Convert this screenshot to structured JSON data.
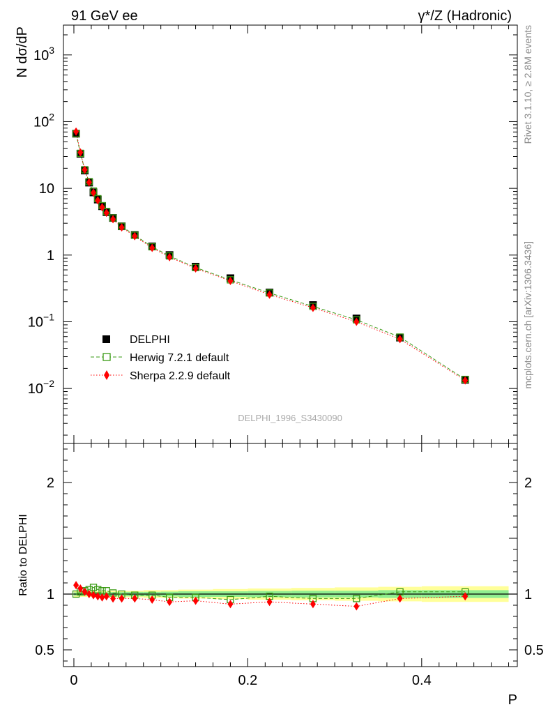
{
  "header": {
    "left_title": "91 GeV ee",
    "right_title": "γ*/Z (Hadronic)"
  },
  "side_labels": {
    "rivet": "Rivet 3.1.10, ≥ 2.8M events",
    "mcplots": "mcplots.cern.ch [arXiv:1306.3436]"
  },
  "watermark": "DELPHI_1996_S3430090",
  "colors": {
    "data": "#000000",
    "herwig": "#3a9a14",
    "sherpa": "#ff0000",
    "band_inner": "#90ee90",
    "band_outer": "#ffff99"
  },
  "chart_data": [
    {
      "type": "scatter",
      "title": "91 GeV ee",
      "xlabel": "P",
      "ylabel": "N dσ/dP",
      "xlim": [
        -0.012,
        0.51
      ],
      "ylim": [
        0.0015,
        2800
      ],
      "yscale": "log",
      "x_ticks": [
        "0",
        "0.2",
        "0.4"
      ],
      "y_tick_labels": [
        "10^-2",
        "10^-1",
        "1",
        "10",
        "10^2",
        "10^3"
      ],
      "legend": {
        "placement": "lower-left",
        "entries": [
          "DELPHI",
          "Herwig 7.2.1 default",
          "Sherpa 2.2.9 default"
        ]
      },
      "x": [
        0.0025,
        0.0075,
        0.0125,
        0.0175,
        0.0225,
        0.0275,
        0.0325,
        0.0375,
        0.045,
        0.055,
        0.07,
        0.09,
        0.11,
        0.14,
        0.18,
        0.225,
        0.275,
        0.325,
        0.375,
        0.45
      ],
      "series": [
        {
          "name": "DELPHI",
          "marker": "filled-square",
          "values": [
            66,
            33,
            18.5,
            12.2,
            8.7,
            6.8,
            5.4,
            4.4,
            3.6,
            2.7,
            2.0,
            1.35,
            1.0,
            0.67,
            0.45,
            0.275,
            0.178,
            0.112,
            0.058,
            0.0135
          ]
        },
        {
          "name": "Herwig 7.2.1 default",
          "marker": "open-square",
          "line": "dashed",
          "values": [
            66,
            33.5,
            19.0,
            12.6,
            9.1,
            7.0,
            5.5,
            4.5,
            3.6,
            2.7,
            1.98,
            1.33,
            0.97,
            0.65,
            0.425,
            0.27,
            0.17,
            0.107,
            0.059,
            0.0137
          ]
        },
        {
          "name": "Sherpa 2.2.9 default",
          "marker": "filled-diamond",
          "line": "dotted",
          "values": [
            71,
            34.5,
            19.0,
            12.3,
            8.6,
            6.6,
            5.2,
            4.3,
            3.45,
            2.6,
            1.92,
            1.28,
            0.93,
            0.63,
            0.41,
            0.255,
            0.162,
            0.1,
            0.055,
            0.0132
          ]
        }
      ]
    },
    {
      "type": "line",
      "xlabel": "P",
      "ylabel": "Ratio to DELPHI",
      "xlim": [
        -0.012,
        0.51
      ],
      "ylim": [
        0.35,
        2.35
      ],
      "y_ticks": [
        "0.5",
        "1",
        "2"
      ],
      "x_ticks": [
        "0",
        "0.2",
        "0.4"
      ],
      "band_edges": [
        0.0,
        0.005,
        0.01,
        0.015,
        0.02,
        0.025,
        0.03,
        0.035,
        0.04,
        0.05,
        0.06,
        0.08,
        0.1,
        0.12,
        0.16,
        0.2,
        0.25,
        0.3,
        0.35,
        0.4,
        0.5
      ],
      "band_inner_halfwidth": [
        0.015,
        0.015,
        0.015,
        0.015,
        0.015,
        0.016,
        0.016,
        0.017,
        0.018,
        0.018,
        0.02,
        0.02,
        0.022,
        0.025,
        0.025,
        0.028,
        0.03,
        0.03,
        0.035,
        0.035
      ],
      "band_outer_halfwidth": [
        0.025,
        0.025,
        0.025,
        0.025,
        0.026,
        0.026,
        0.028,
        0.028,
        0.03,
        0.03,
        0.03,
        0.035,
        0.035,
        0.04,
        0.045,
        0.05,
        0.055,
        0.06,
        0.065,
        0.07
      ],
      "series": [
        {
          "name": "Herwig 7.2.1 default",
          "values": [
            1.0,
            1.02,
            1.03,
            1.04,
            1.06,
            1.04,
            1.03,
            1.03,
            1.01,
            1.0,
            0.99,
            0.99,
            0.97,
            0.97,
            0.95,
            0.98,
            0.96,
            0.96,
            1.02,
            1.02
          ]
        },
        {
          "name": "Sherpa 2.2.9 default",
          "values": [
            1.08,
            1.05,
            1.02,
            1.0,
            0.99,
            0.98,
            0.97,
            0.98,
            0.96,
            0.96,
            0.96,
            0.95,
            0.93,
            0.94,
            0.91,
            0.93,
            0.91,
            0.89,
            0.96,
            0.98
          ]
        }
      ]
    }
  ]
}
